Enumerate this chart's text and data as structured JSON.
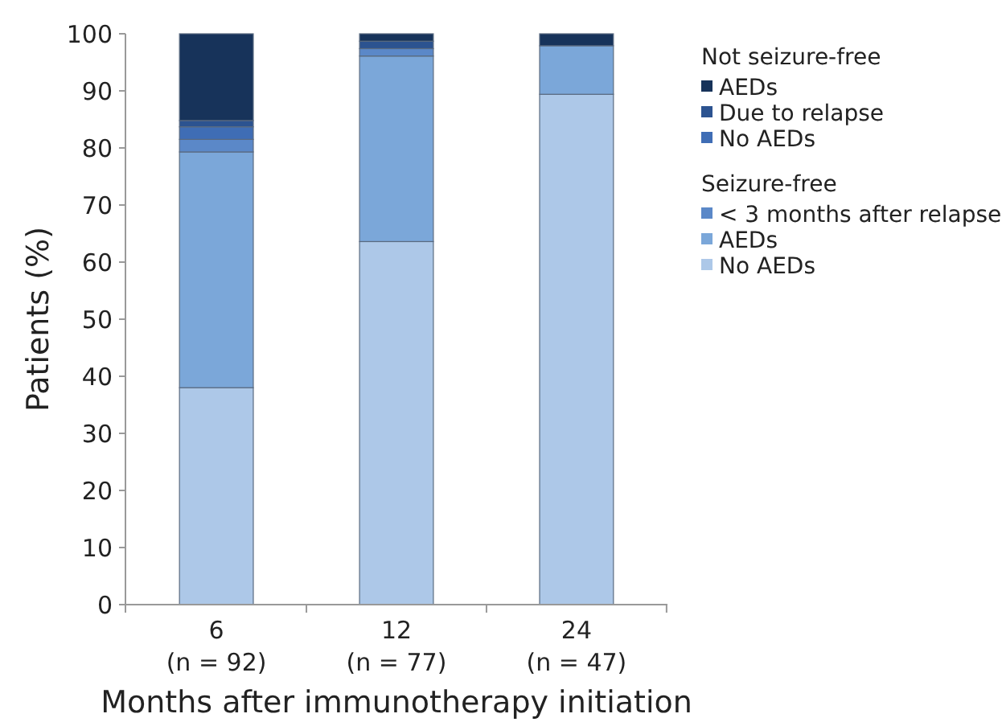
{
  "chart_data": {
    "type": "bar",
    "stacked": true,
    "xlabel": "Months after immunotherapy initiation",
    "ylabel": "Patients (%)",
    "categories": [
      "6\n(n = 92)",
      "12\n(n = 77)",
      "24\n(n = 47)"
    ],
    "series": [
      {
        "name": "No AEDs",
        "color": "#adc8e8",
        "values": [
          38.0,
          63.6,
          89.4
        ]
      },
      {
        "name": "AEDs",
        "color": "#7ba7d9",
        "values": [
          41.3,
          32.5,
          8.5
        ]
      },
      {
        "name": "< 3 months after relapse",
        "color": "#5b88c8",
        "values": [
          2.2,
          1.3,
          0
        ]
      },
      {
        "name": "No AEDs",
        "color": "#3f6db5",
        "values": [
          2.2,
          0,
          0
        ]
      },
      {
        "name": "Due to relapse",
        "color": "#2c5390",
        "values": [
          1.1,
          1.3,
          0
        ]
      },
      {
        "name": "AEDs",
        "color": "#17335a",
        "values": [
          15.2,
          1.3,
          2.1
        ]
      }
    ],
    "annotations": [
      "Not seizure-free",
      "Seizure-free"
    ],
    "ylim": [
      0,
      100
    ],
    "yticks": [
      0,
      10,
      20,
      30,
      40,
      50,
      60,
      70,
      80,
      90,
      100
    ],
    "grid": false,
    "legend": "right"
  }
}
